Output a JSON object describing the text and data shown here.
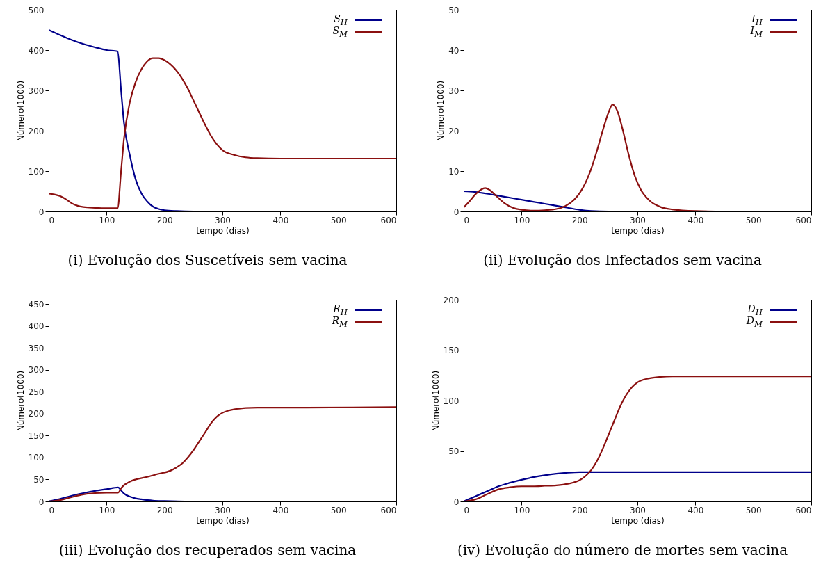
{
  "chart_data": [
    {
      "type": "line",
      "title": "(i) Evolução dos Suscetíveis sem vacina",
      "xlabel": "tempo (dias)",
      "ylabel": "Número(1000)",
      "xlim": [
        0,
        600
      ],
      "xticks": [
        0,
        100,
        200,
        300,
        400,
        500,
        600
      ],
      "ylim": [
        0,
        500
      ],
      "yticks": [
        0,
        100,
        200,
        300,
        400,
        500
      ],
      "legend": "top right",
      "series": [
        {
          "name": "S$_{H}$",
          "color": "#00008b",
          "x": [
            0,
            20,
            40,
            60,
            80,
            100,
            119,
            125,
            130,
            140,
            150,
            160,
            170,
            180,
            190,
            200,
            220,
            250,
            300,
            600
          ],
          "values": [
            450,
            437,
            425,
            415,
            407,
            400,
            397,
            300,
            220,
            140,
            80,
            45,
            25,
            12,
            6,
            3,
            1,
            0,
            0,
            0
          ]
        },
        {
          "name": "S$_{M}$",
          "color": "#8b1010",
          "x": [
            0,
            10,
            20,
            30,
            40,
            50,
            60,
            80,
            100,
            119,
            125,
            130,
            140,
            150,
            160,
            170,
            180,
            190,
            200,
            210,
            220,
            230,
            240,
            250,
            260,
            270,
            280,
            290,
            300,
            320,
            340,
            360,
            400,
            600
          ],
          "values": [
            44,
            42,
            38,
            30,
            20,
            14,
            11,
            9,
            8,
            8,
            100,
            180,
            270,
            320,
            352,
            372,
            380,
            380,
            375,
            365,
            350,
            330,
            305,
            275,
            245,
            215,
            188,
            167,
            152,
            140,
            134,
            132,
            131,
            131
          ]
        }
      ]
    },
    {
      "type": "line",
      "title": "(ii) Evolução dos Infectados sem vacina",
      "xlabel": "tempo (dias)",
      "ylabel": "Número(1000)",
      "xlim": [
        0,
        600
      ],
      "xticks": [
        0,
        100,
        200,
        300,
        400,
        500,
        600
      ],
      "ylim": [
        0,
        50
      ],
      "yticks": [
        0,
        10,
        20,
        30,
        40,
        50
      ],
      "legend": "top right",
      "series": [
        {
          "name": "I$_{H}$",
          "color": "#00008b",
          "x": [
            0,
            20,
            40,
            60,
            80,
            100,
            120,
            140,
            160,
            180,
            200,
            220,
            250,
            600
          ],
          "values": [
            5,
            4.8,
            4.4,
            3.9,
            3.4,
            2.9,
            2.4,
            1.9,
            1.4,
            0.9,
            0.4,
            0.1,
            0,
            0
          ]
        },
        {
          "name": "I$_{M}$",
          "color": "#8b1010",
          "x": [
            0,
            10,
            20,
            30,
            37,
            45,
            55,
            70,
            85,
            100,
            120,
            140,
            160,
            175,
            190,
            200,
            210,
            220,
            230,
            240,
            250,
            257,
            265,
            275,
            285,
            295,
            305,
            320,
            340,
            360,
            400,
            450,
            600
          ],
          "values": [
            1,
            2.5,
            4.2,
            5.4,
            5.8,
            5.3,
            4,
            2.1,
            0.9,
            0.4,
            0.2,
            0.3,
            0.6,
            1.3,
            2.8,
            4.5,
            7,
            10.5,
            15,
            20,
            24.5,
            26.5,
            25,
            20,
            14,
            9,
            5.6,
            2.8,
            1.1,
            0.5,
            0.1,
            0,
            0
          ]
        }
      ]
    },
    {
      "type": "line",
      "title": "(iii) Evolução dos recuperados sem vacina",
      "xlabel": "tempo (dias)",
      "ylabel": "Número(1000)",
      "xlim": [
        0,
        600
      ],
      "xticks": [
        0,
        100,
        200,
        300,
        400,
        500,
        600
      ],
      "ylim": [
        0,
        460
      ],
      "yticks": [
        0,
        50,
        100,
        150,
        200,
        250,
        300,
        350,
        400,
        450
      ],
      "legend": "top right",
      "series": [
        {
          "name": "R$_{H}$",
          "color": "#00008b",
          "x": [
            0,
            20,
            40,
            60,
            80,
            100,
            120,
            125,
            130,
            140,
            150,
            160,
            180,
            200,
            250,
            600
          ],
          "values": [
            0,
            6,
            13,
            19,
            24,
            28,
            32,
            25,
            18,
            11,
            7,
            5,
            2,
            1,
            0,
            0
          ]
        },
        {
          "name": "R$_{M}$",
          "color": "#8b1010",
          "x": [
            0,
            20,
            40,
            60,
            80,
            100,
            120,
            125,
            130,
            140,
            150,
            170,
            190,
            210,
            220,
            230,
            240,
            250,
            260,
            270,
            280,
            290,
            300,
            310,
            320,
            340,
            360,
            400,
            600
          ],
          "values": [
            0,
            3,
            10,
            16,
            19,
            20,
            20,
            30,
            37,
            45,
            50,
            56,
            63,
            70,
            77,
            86,
            100,
            117,
            137,
            157,
            178,
            193,
            202,
            207,
            210,
            213,
            214,
            214,
            215
          ]
        }
      ]
    },
    {
      "type": "line",
      "title": "(iv) Evolução do número de mortes sem vacina",
      "xlabel": "tempo (dias)",
      "ylabel": "Número(1000)",
      "xlim": [
        0,
        600
      ],
      "xticks": [
        0,
        100,
        200,
        300,
        400,
        500,
        600
      ],
      "ylim": [
        0,
        200
      ],
      "yticks": [
        0,
        50,
        100,
        150,
        200
      ],
      "legend": "top right",
      "series": [
        {
          "name": "D$_{H}$",
          "color": "#00008b",
          "x": [
            0,
            20,
            40,
            60,
            80,
            100,
            120,
            140,
            160,
            180,
            200,
            250,
            600
          ],
          "values": [
            0,
            5,
            10,
            15,
            18.5,
            21.5,
            24,
            26,
            27.5,
            28.5,
            29,
            29,
            29
          ]
        },
        {
          "name": "D$_{M}$",
          "color": "#8b1010",
          "x": [
            0,
            20,
            40,
            60,
            80,
            100,
            120,
            140,
            160,
            180,
            200,
            210,
            220,
            230,
            240,
            250,
            260,
            270,
            280,
            290,
            300,
            320,
            340,
            360,
            600
          ],
          "values": [
            0,
            2,
            7,
            12,
            14,
            15,
            15,
            15.5,
            16,
            17.5,
            21,
            25,
            31,
            40,
            52,
            66,
            80,
            94,
            105,
            113,
            118,
            122,
            123.5,
            124,
            124
          ]
        }
      ]
    }
  ]
}
